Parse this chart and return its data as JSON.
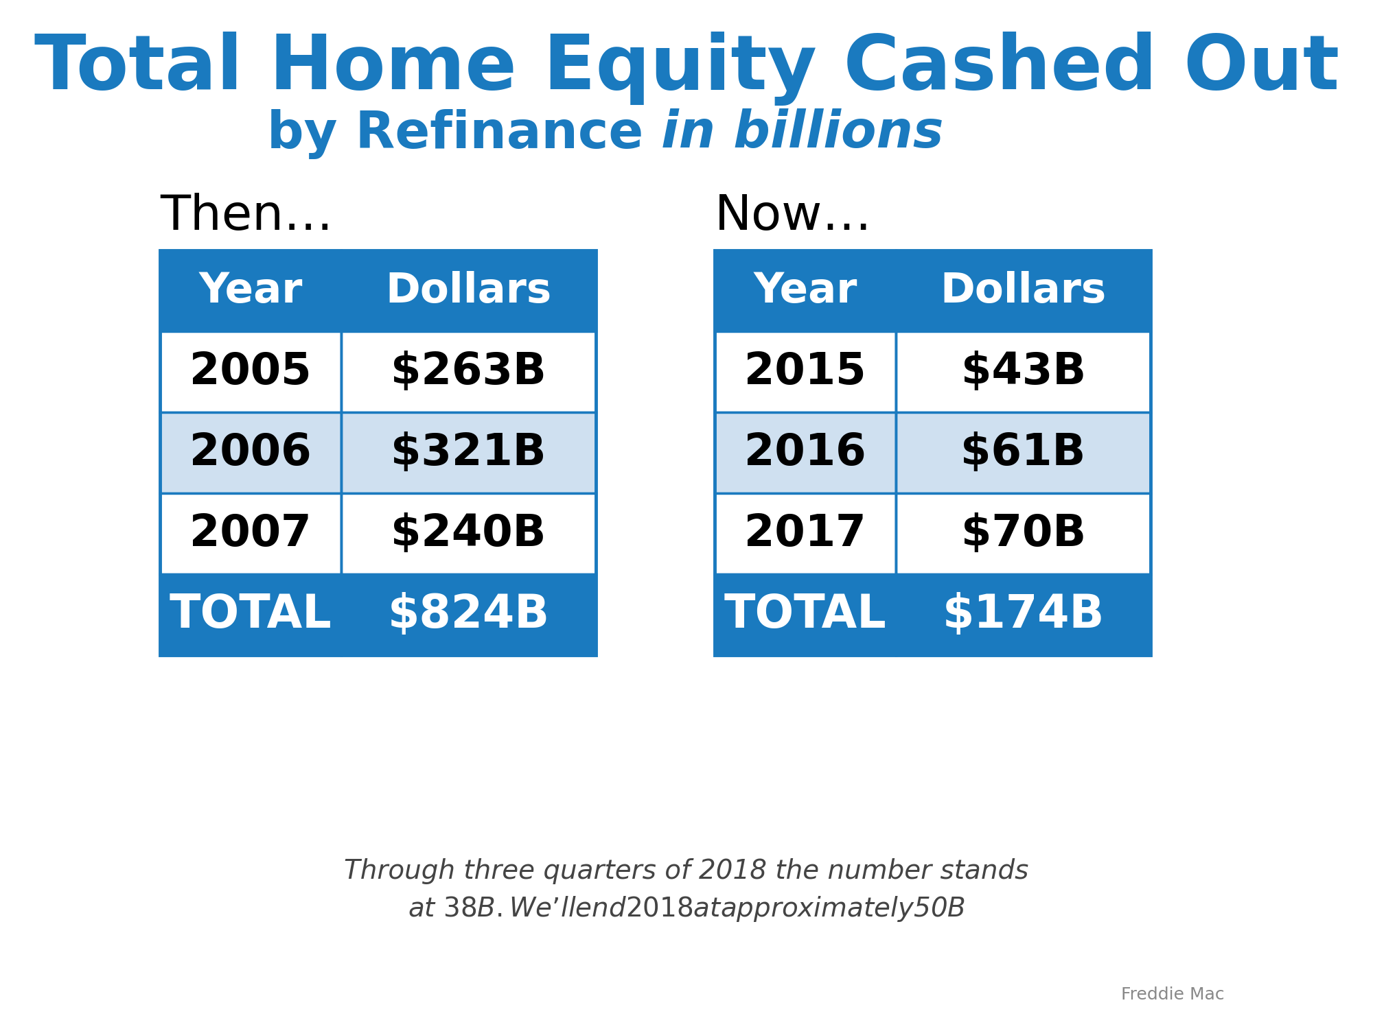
{
  "title_line1": "Total Home Equity Cashed Out",
  "title_line2_regular": "by Refinance ",
  "title_line2_italic": "in billions",
  "title_color": "#1a7abf",
  "then_label": "Then…",
  "now_label": "Now…",
  "header_bg": "#1a7abf",
  "header_text_color": "#ffffff",
  "total_bg": "#1a7abf",
  "total_text_color": "#ffffff",
  "row_alt_bg": "#cfe0f0",
  "row_white_bg": "#ffffff",
  "table_border_color": "#1a7abf",
  "then_years": [
    "2005",
    "2006",
    "2007"
  ],
  "then_dollars": [
    "$263B",
    "$321B",
    "$240B"
  ],
  "then_total_year": "TOTAL",
  "then_total_dollars": "$824B",
  "now_years": [
    "2015",
    "2016",
    "2017"
  ],
  "now_dollars": [
    "$43B",
    "$61B",
    "$70B"
  ],
  "now_total_year": "TOTAL",
  "now_total_dollars": "$174B",
  "footer_line1": "Through three quarters of 2018 the number stands",
  "footer_line2": "at $38B. We’ll end 2018 at approximately $50B",
  "source_text": "Freddie Mac",
  "bg_color": "#ffffff",
  "data_text_color": "#000000"
}
